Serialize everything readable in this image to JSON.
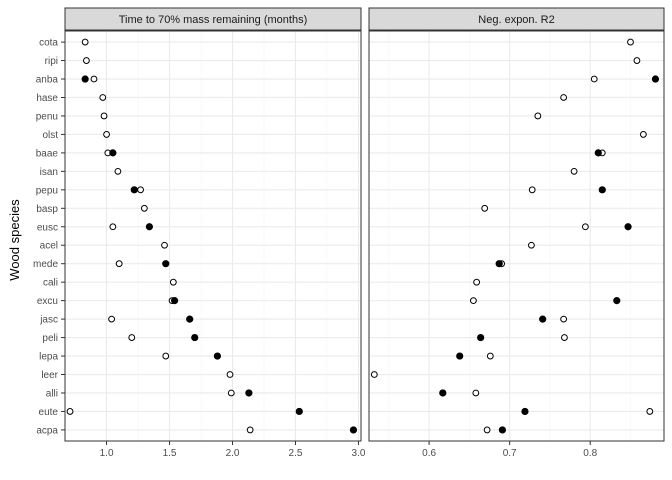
{
  "chart_data": {
    "type": "scatter",
    "ylabel": "Wood species",
    "species": [
      "cota",
      "ripi",
      "anba",
      "hase",
      "penu",
      "olst",
      "baae",
      "isan",
      "pepu",
      "basp",
      "eusc",
      "acel",
      "mede",
      "cali",
      "excu",
      "jasc",
      "peli",
      "lepa",
      "leer",
      "alli",
      "eute",
      "acpa"
    ],
    "colors": {
      "filled": "#000000",
      "open": "#ffffff",
      "stroke": "#000000",
      "strip_bg": "#d9d9d9",
      "grid_major": "#ebebeb",
      "grid_minor": "#f5f5f5",
      "border": "#333333"
    },
    "panels": [
      {
        "title": "Time to 70% mass remaining (months)",
        "xlim": [
          0.67,
          3.02
        ],
        "xticks": [
          1.0,
          1.5,
          2.0,
          2.5,
          3.0
        ],
        "xtick_labels": [
          "1.0",
          "1.5",
          "2.0",
          "2.5",
          "3.0"
        ],
        "x_minor": [
          1.25,
          1.75,
          2.25,
          2.75
        ],
        "series": [
          {
            "marker": "open",
            "points": [
              {
                "species": "cota",
                "x": 0.83
              },
              {
                "species": "ripi",
                "x": 0.84
              },
              {
                "species": "anba",
                "x": 0.9
              },
              {
                "species": "hase",
                "x": 0.97
              },
              {
                "species": "penu",
                "x": 0.98
              },
              {
                "species": "olst",
                "x": 1.0
              },
              {
                "species": "baae",
                "x": 1.01
              },
              {
                "species": "isan",
                "x": 1.09
              },
              {
                "species": "pepu",
                "x": 1.27
              },
              {
                "species": "basp",
                "x": 1.3
              },
              {
                "species": "eusc",
                "x": 1.05
              },
              {
                "species": "acel",
                "x": 1.46
              },
              {
                "species": "mede",
                "x": 1.1
              },
              {
                "species": "cali",
                "x": 1.53
              },
              {
                "species": "excu",
                "x": 1.52
              },
              {
                "species": "jasc",
                "x": 1.04
              },
              {
                "species": "peli",
                "x": 1.2
              },
              {
                "species": "lepa",
                "x": 1.47
              },
              {
                "species": "leer",
                "x": 1.98
              },
              {
                "species": "alli",
                "x": 1.99
              },
              {
                "species": "eute",
                "x": 0.71
              },
              {
                "species": "acpa",
                "x": 2.14
              }
            ]
          },
          {
            "marker": "filled",
            "points": [
              {
                "species": "anba",
                "x": 0.83
              },
              {
                "species": "baae",
                "x": 1.05
              },
              {
                "species": "pepu",
                "x": 1.22
              },
              {
                "species": "eusc",
                "x": 1.34
              },
              {
                "species": "mede",
                "x": 1.47
              },
              {
                "species": "excu",
                "x": 1.54
              },
              {
                "species": "jasc",
                "x": 1.66
              },
              {
                "species": "peli",
                "x": 1.7
              },
              {
                "species": "lepa",
                "x": 1.88
              },
              {
                "species": "alli",
                "x": 2.13
              },
              {
                "species": "eute",
                "x": 2.53
              },
              {
                "species": "acpa",
                "x": 2.96
              }
            ]
          }
        ]
      },
      {
        "title": "Neg. expon. R2",
        "xlim": [
          0.5254,
          0.8916
        ],
        "xticks": [
          0.6,
          0.7,
          0.8
        ],
        "xtick_labels": [
          "0.6",
          "0.7",
          "0.8"
        ],
        "x_minor": [
          0.55,
          0.65,
          0.75,
          0.85
        ],
        "series": [
          {
            "marker": "open",
            "points": [
              {
                "species": "cota",
                "x": 0.85
              },
              {
                "species": "ripi",
                "x": 0.858
              },
              {
                "species": "anba",
                "x": 0.805
              },
              {
                "species": "hase",
                "x": 0.767
              },
              {
                "species": "penu",
                "x": 0.735
              },
              {
                "species": "olst",
                "x": 0.866
              },
              {
                "species": "baae",
                "x": 0.815
              },
              {
                "species": "isan",
                "x": 0.78
              },
              {
                "species": "pepu",
                "x": 0.728
              },
              {
                "species": "basp",
                "x": 0.669
              },
              {
                "species": "eusc",
                "x": 0.794
              },
              {
                "species": "acel",
                "x": 0.727
              },
              {
                "species": "mede",
                "x": 0.69
              },
              {
                "species": "cali",
                "x": 0.659
              },
              {
                "species": "excu",
                "x": 0.655
              },
              {
                "species": "jasc",
                "x": 0.767
              },
              {
                "species": "peli",
                "x": 0.768
              },
              {
                "species": "lepa",
                "x": 0.676
              },
              {
                "species": "leer",
                "x": 0.532
              },
              {
                "species": "alli",
                "x": 0.658
              },
              {
                "species": "eute",
                "x": 0.874
              },
              {
                "species": "acpa",
                "x": 0.672
              }
            ]
          },
          {
            "marker": "filled",
            "points": [
              {
                "species": "anba",
                "x": 0.881
              },
              {
                "species": "baae",
                "x": 0.81
              },
              {
                "species": "pepu",
                "x": 0.815
              },
              {
                "species": "eusc",
                "x": 0.847
              },
              {
                "species": "mede",
                "x": 0.687
              },
              {
                "species": "excu",
                "x": 0.833
              },
              {
                "species": "jasc",
                "x": 0.741
              },
              {
                "species": "peli",
                "x": 0.664
              },
              {
                "species": "lepa",
                "x": 0.638
              },
              {
                "species": "alli",
                "x": 0.617
              },
              {
                "species": "eute",
                "x": 0.719
              },
              {
                "species": "acpa",
                "x": 0.691
              }
            ]
          }
        ]
      }
    ]
  }
}
